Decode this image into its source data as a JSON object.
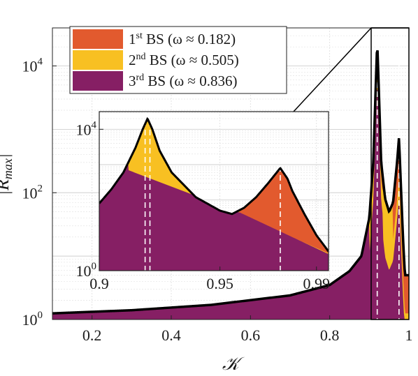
{
  "chart_data": [
    {
      "type": "area",
      "title": "",
      "xlabel": "𝒦",
      "ylabel": "|R_max|",
      "xlim": [
        0.1,
        1.0
      ],
      "ylim_log10": [
        0,
        4.6
      ],
      "y_scale": "log",
      "x_ticks": [
        0.2,
        0.4,
        0.6,
        0.8,
        1.0
      ],
      "x_tick_labels": [
        "0.2",
        "0.4",
        "0.6",
        "0.8",
        "1"
      ],
      "y_ticks": [
        1,
        100,
        10000
      ],
      "grid": true,
      "legend_position": "top-left",
      "series": [
        {
          "name": "1st BS (ω ≈ 0.182)",
          "color": "#e25a2e"
        },
        {
          "name": "2nd BS (ω ≈ 0.505)",
          "color": "#f8c022"
        },
        {
          "name": "3rd BS (ω ≈ 0.836)",
          "color": "#861f64"
        }
      ],
      "envelope": {
        "x": [
          0.1,
          0.3,
          0.5,
          0.7,
          0.8,
          0.85,
          0.88,
          0.9,
          0.91,
          0.92,
          0.93,
          0.94,
          0.95,
          0.96,
          0.97,
          0.975,
          0.98,
          0.985,
          0.99
        ],
        "y": [
          1.25,
          1.4,
          1.7,
          2.4,
          3.5,
          5.8,
          10,
          40,
          300,
          25000,
          300,
          80,
          50,
          70,
          300,
          750,
          120,
          20,
          5
        ]
      },
      "peak_markers_x": [
        0.92,
        0.975
      ]
    },
    {
      "type": "area",
      "title": "",
      "xlim": [
        0.9,
        0.995
      ],
      "x_ticks": [
        0.9,
        0.95,
        0.99
      ],
      "x_tick_labels": [
        "0.9",
        "0.95",
        "0.99"
      ],
      "y_scale": "log",
      "ylim_log10": [
        0,
        4.5
      ],
      "y_ticks": [
        1,
        10000
      ],
      "envelope": {
        "x": [
          0.9,
          0.905,
          0.91,
          0.915,
          0.918,
          0.92,
          0.922,
          0.925,
          0.93,
          0.94,
          0.95,
          0.955,
          0.96,
          0.965,
          0.97,
          0.975,
          0.978,
          0.98,
          0.985,
          0.99,
          0.995
        ],
        "y": [
          80,
          200,
          600,
          3000,
          10000,
          20000,
          10000,
          2500,
          600,
          120,
          50,
          40,
          60,
          120,
          300,
          800,
          400,
          180,
          40,
          10,
          3.5
        ]
      },
      "peak_markers_x": [
        0.919,
        0.921,
        0.975
      ]
    }
  ],
  "legend": {
    "items": [
      {
        "label": "1st BS (ω ≈ 0.182)",
        "sup": "st",
        "num": "1",
        "rest": " BS (ω ≈ 0.182)"
      },
      {
        "label": "2nd BS (ω ≈ 0.505)",
        "sup": "nd",
        "num": "2",
        "rest": " BS (ω ≈ 0.505)"
      },
      {
        "label": "3rd BS (ω ≈ 0.836)",
        "sup": "rd",
        "num": "3",
        "rest": " BS (ω ≈ 0.836)"
      }
    ]
  },
  "main_y_tick_labels": [
    {
      "base": "10",
      "exp": "0"
    },
    {
      "base": "10",
      "exp": "2"
    },
    {
      "base": "10",
      "exp": "4"
    }
  ],
  "inset_y_tick_labels": [
    {
      "base": "10",
      "exp": "0"
    },
    {
      "base": "10",
      "exp": "4"
    }
  ],
  "ylabel_text": "|R",
  "ylabel_sub": "max",
  "xlabel_text": "𝒦"
}
